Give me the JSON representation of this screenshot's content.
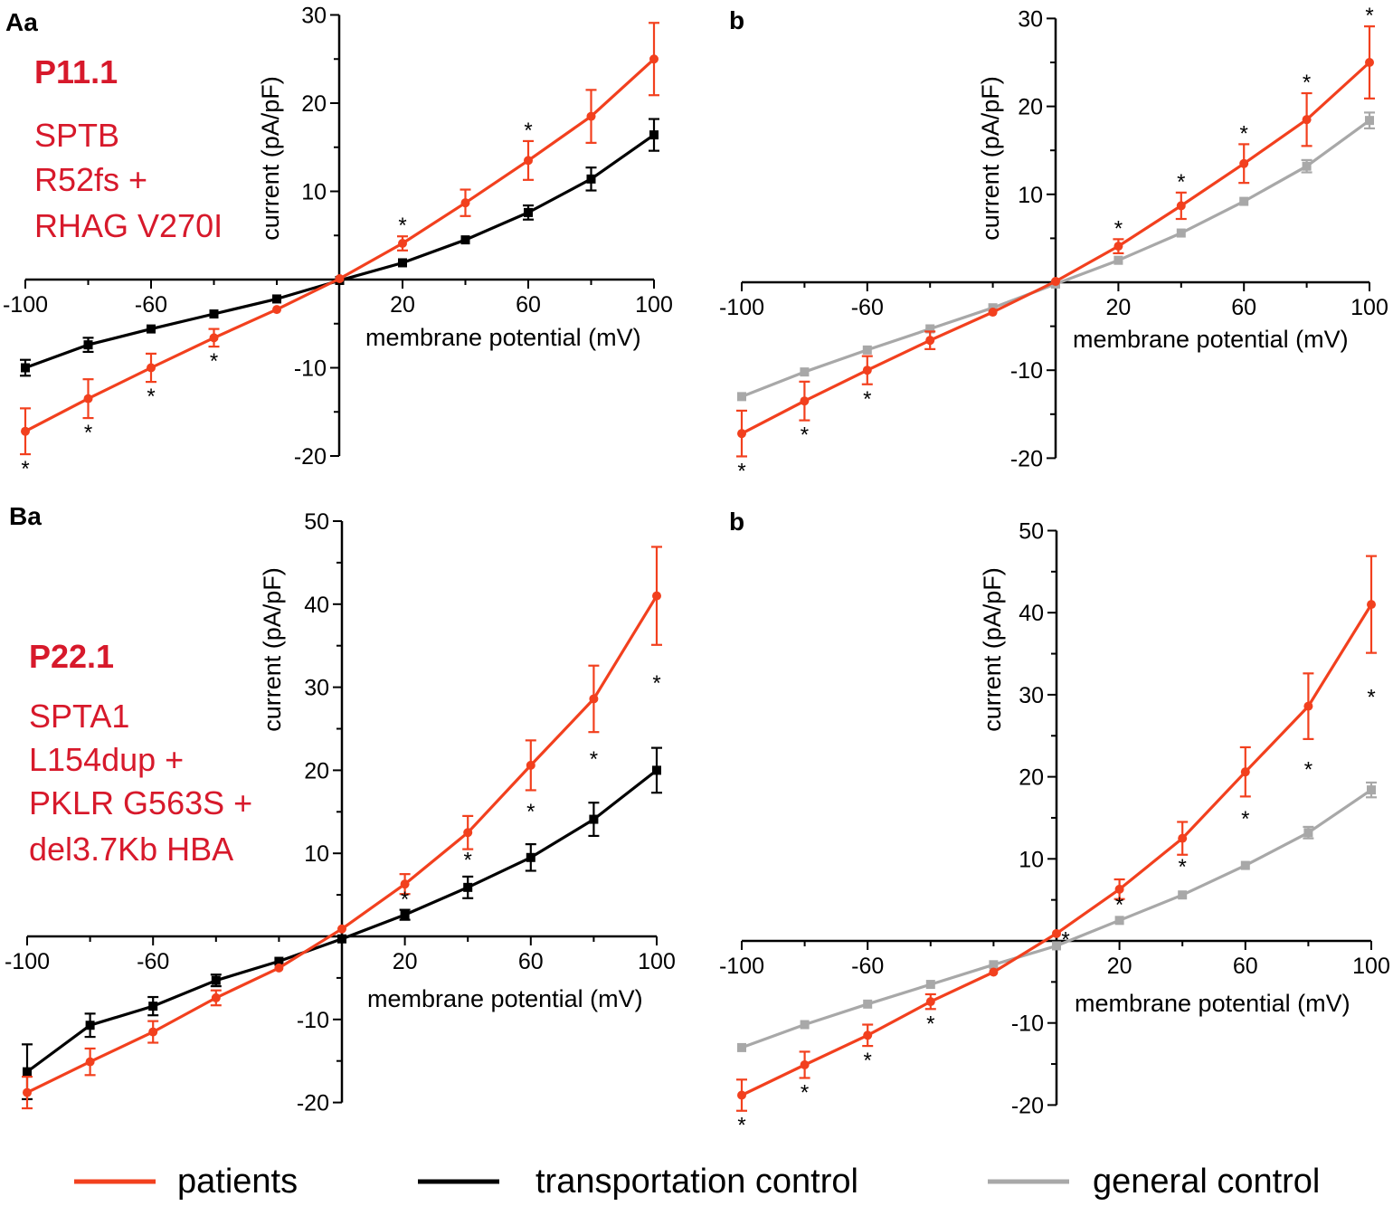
{
  "colors": {
    "patients": "#F2401E",
    "transportation_control": "#000000",
    "general_control": "#A8A8A8",
    "annotation": "#D7192B"
  },
  "legend": [
    {
      "key": "patients",
      "label": "patients"
    },
    {
      "key": "transportation_control",
      "label": "transportation control"
    },
    {
      "key": "general_control",
      "label": "general control"
    }
  ],
  "annotations": {
    "A": {
      "patient_id": "P11.1",
      "lines": [
        "SPTB",
        "R52fs +",
        "RHAG V270I"
      ]
    },
    "B": {
      "patient_id": "P22.1",
      "lines": [
        "SPTA1",
        "L154dup +",
        "PKLR G563S +",
        "del3.7Kb HBA"
      ]
    }
  },
  "chart_data": [
    {
      "id": "Aa",
      "panel_label": "Aa",
      "type": "line",
      "xlabel": "membrane potential (mV)",
      "ylabel": "current (pA/pF)",
      "xlim": [
        -100,
        100
      ],
      "ylim": [
        -20,
        30
      ],
      "xticks": [
        -100,
        -60,
        20,
        60,
        100
      ],
      "yticks": [
        -20,
        -10,
        10,
        20,
        30
      ],
      "x": [
        -100,
        -80,
        -60,
        -40,
        -20,
        0,
        20,
        40,
        60,
        80,
        100
      ],
      "series": [
        {
          "name": "transportation control",
          "key": "transportation_control",
          "marker": "square",
          "values": [
            -10.0,
            -7.4,
            -5.6,
            -3.9,
            -2.2,
            -0.1,
            1.9,
            4.5,
            7.6,
            11.4,
            16.4
          ],
          "errors": [
            0.9,
            0.8,
            0.5,
            0.4,
            0.3,
            0.2,
            0.3,
            0.5,
            0.8,
            1.3,
            1.8
          ]
        },
        {
          "name": "patients",
          "key": "patients",
          "marker": "circle",
          "values": [
            -17.2,
            -13.5,
            -10.0,
            -6.6,
            -3.4,
            0.1,
            4.1,
            8.7,
            13.5,
            18.5,
            25.0
          ],
          "errors": [
            2.6,
            2.2,
            1.6,
            1.0,
            0.5,
            0.2,
            0.8,
            1.5,
            2.2,
            3.0,
            4.1
          ]
        }
      ],
      "stars": [
        -100,
        -80,
        -60,
        -40,
        20,
        60
      ]
    },
    {
      "id": "Ab",
      "panel_label": "b",
      "type": "line",
      "xlabel": "membrane potential (mV)",
      "ylabel": "current (pA/pF)",
      "xlim": [
        -100,
        100
      ],
      "ylim": [
        -20,
        30
      ],
      "xticks": [
        -100,
        -60,
        20,
        60,
        100
      ],
      "yticks": [
        -20,
        -10,
        10,
        20,
        30
      ],
      "x": [
        -100,
        -80,
        -60,
        -40,
        -20,
        0,
        20,
        40,
        60,
        80,
        100
      ],
      "series": [
        {
          "name": "general control",
          "key": "general_control",
          "marker": "square",
          "values": [
            -13.0,
            -10.2,
            -7.7,
            -5.3,
            -2.9,
            -0.2,
            2.5,
            5.6,
            9.2,
            13.2,
            18.4
          ],
          "errors": [
            0.3,
            0.3,
            0.3,
            0.3,
            0.2,
            0.1,
            0.3,
            0.4,
            0.5,
            0.7,
            0.9
          ]
        },
        {
          "name": "patients",
          "key": "patients",
          "marker": "circle",
          "values": [
            -17.2,
            -13.5,
            -10.0,
            -6.6,
            -3.4,
            0.1,
            4.1,
            8.7,
            13.5,
            18.5,
            25.0
          ],
          "errors": [
            2.6,
            2.2,
            1.6,
            1.0,
            0.5,
            0.2,
            0.8,
            1.5,
            2.2,
            3.0,
            4.1
          ]
        }
      ],
      "stars": [
        -100,
        -80,
        -60,
        20,
        40,
        60,
        80,
        100
      ]
    },
    {
      "id": "Ba",
      "panel_label": "Ba",
      "type": "line",
      "xlabel": "membrane potential (mV)",
      "ylabel": "current (pA/pF)",
      "xlim": [
        -100,
        100
      ],
      "ylim": [
        -20,
        50
      ],
      "xticks": [
        -100,
        -60,
        20,
        60,
        100
      ],
      "yticks": [
        -20,
        -10,
        10,
        20,
        30,
        40,
        50
      ],
      "x": [
        -100,
        -80,
        -60,
        -40,
        -20,
        0,
        20,
        40,
        60,
        80,
        100
      ],
      "series": [
        {
          "name": "transportation control",
          "key": "transportation_control",
          "marker": "square",
          "values": [
            -16.3,
            -10.7,
            -8.4,
            -5.3,
            -3.0,
            -0.3,
            2.6,
            5.9,
            9.5,
            14.1,
            20.0
          ],
          "errors": [
            3.3,
            1.4,
            1.1,
            0.7,
            0.4,
            0.2,
            0.6,
            1.3,
            1.6,
            2.0,
            2.7
          ]
        },
        {
          "name": "patients",
          "key": "patients",
          "marker": "circle",
          "values": [
            -18.8,
            -15.1,
            -11.5,
            -7.4,
            -3.8,
            0.9,
            6.3,
            12.5,
            20.6,
            28.6,
            41.0
          ],
          "errors": [
            1.9,
            1.6,
            1.3,
            0.9,
            0.5,
            0.3,
            1.2,
            2.0,
            3.0,
            4.0,
            5.9
          ]
        }
      ],
      "stars": [
        20,
        40,
        60,
        80,
        100
      ]
    },
    {
      "id": "Bb",
      "panel_label": "b",
      "type": "line",
      "xlabel": "membrane potential (mV)",
      "ylabel": "current (pA/pF)",
      "xlim": [
        -100,
        100
      ],
      "ylim": [
        -20,
        50
      ],
      "xticks": [
        -100,
        -60,
        20,
        60,
        100
      ],
      "yticks": [
        -20,
        -10,
        10,
        20,
        30,
        40,
        50
      ],
      "x": [
        -100,
        -80,
        -60,
        -40,
        -20,
        0,
        20,
        40,
        60,
        80,
        100
      ],
      "series": [
        {
          "name": "general control",
          "key": "general_control",
          "marker": "square",
          "values": [
            -13.0,
            -10.2,
            -7.7,
            -5.3,
            -2.9,
            -0.6,
            2.5,
            5.6,
            9.2,
            13.2,
            18.4
          ],
          "errors": [
            0.3,
            0.3,
            0.3,
            0.3,
            0.2,
            0.1,
            0.3,
            0.4,
            0.5,
            0.7,
            0.9
          ]
        },
        {
          "name": "patients",
          "key": "patients",
          "marker": "circle",
          "values": [
            -18.8,
            -15.1,
            -11.5,
            -7.4,
            -3.8,
            0.9,
            6.3,
            12.5,
            20.6,
            28.6,
            41.0
          ],
          "errors": [
            1.9,
            1.6,
            1.3,
            0.9,
            0.5,
            0.3,
            1.2,
            2.0,
            3.0,
            4.0,
            5.9
          ]
        }
      ],
      "stars": [
        -100,
        -80,
        -60,
        -40,
        0,
        20,
        40,
        60,
        80,
        100
      ]
    }
  ]
}
